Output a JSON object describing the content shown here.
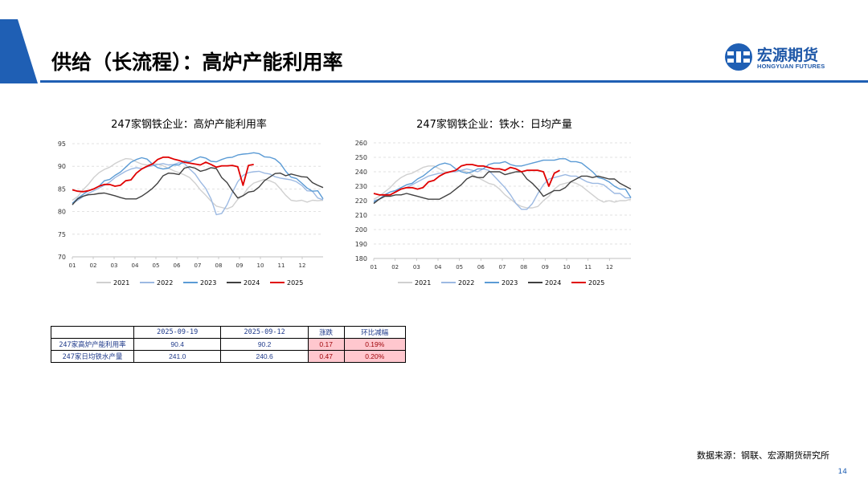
{
  "slide": {
    "title": "供给（长流程）：高炉产能利用率",
    "logo_cn": "宏源期货",
    "logo_en": "HONGYUAN FUTURES",
    "source": "数据来源：钢联、宏源期货研究所",
    "page_number": "14"
  },
  "colors": {
    "brand_blue": "#1f5fb4",
    "series_2021": "#d0d0d0",
    "series_2022": "#9cb9e2",
    "series_2023": "#5b9bd5",
    "series_2024": "#404040",
    "series_2025": "#e00000"
  },
  "chart_data": [
    {
      "type": "line",
      "title": "247家钢铁企业：高炉产能利用率",
      "x_ticks": [
        "01",
        "02",
        "03",
        "04",
        "05",
        "06",
        "07",
        "08",
        "09",
        "10",
        "11",
        "12"
      ],
      "ylim": [
        70,
        95
      ],
      "y_ticks": [
        70,
        75,
        80,
        85,
        90,
        95
      ],
      "legend": "bottom",
      "grid": "horizontal dashed",
      "series": [
        {
          "name": "2021",
          "values": [
            82.5,
            83.3,
            84.8,
            86.0,
            87.5,
            88.6,
            89.3,
            89.8,
            90.6,
            91.2,
            91.7,
            91.6,
            91.0,
            90.5,
            90.3,
            90.6,
            90.5,
            90.1,
            89.6,
            89.0,
            88.6,
            88.1,
            87.5,
            86.3,
            84.8,
            83.6,
            82.3,
            81.2,
            80.9,
            80.6,
            81.1,
            82.7,
            83.6,
            85.3,
            86.3,
            86.7,
            87.1,
            86.8,
            86.3,
            85.0,
            83.6,
            82.5,
            82.3,
            82.5,
            82.1,
            82.5,
            82.4,
            82.5
          ]
        },
        {
          "name": "2022",
          "values": [
            81.8,
            82.5,
            83.3,
            84.0,
            84.6,
            85.2,
            85.8,
            86.5,
            87.5,
            88.2,
            88.9,
            89.4,
            89.7,
            89.5,
            89.9,
            90.1,
            90.4,
            90.6,
            90.3,
            90.4,
            90.8,
            90.6,
            89.4,
            88.3,
            86.6,
            85.1,
            82.8,
            79.3,
            79.6,
            81.5,
            84.2,
            86.6,
            88.0,
            88.6,
            88.8,
            88.9,
            88.5,
            88.3,
            87.7,
            87.4,
            87.2,
            87.0,
            86.6,
            85.8,
            84.6,
            84.5,
            83.0,
            82.6
          ]
        },
        {
          "name": "2023",
          "values": [
            81.8,
            82.9,
            83.8,
            84.6,
            85.0,
            85.6,
            86.8,
            87.1,
            88.0,
            88.7,
            89.8,
            90.9,
            91.5,
            91.9,
            91.6,
            90.5,
            89.7,
            89.4,
            89.6,
            90.3,
            90.3,
            91.2,
            91.0,
            91.6,
            92.1,
            91.8,
            91.1,
            91.0,
            91.5,
            91.9,
            92.0,
            92.5,
            92.7,
            92.8,
            93.0,
            92.8,
            92.1,
            92.0,
            91.6,
            90.6,
            88.9,
            87.6,
            87.3,
            86.3,
            85.2,
            84.5,
            84.6,
            82.8
          ]
        },
        {
          "name": "2024",
          "values": [
            81.5,
            82.8,
            83.4,
            83.7,
            83.8,
            84.0,
            84.1,
            83.8,
            83.5,
            83.1,
            82.8,
            82.8,
            82.8,
            83.4,
            84.2,
            85.1,
            86.3,
            87.9,
            88.5,
            88.4,
            88.2,
            89.6,
            89.9,
            89.6,
            88.9,
            89.2,
            89.7,
            89.5,
            87.5,
            86.4,
            84.6,
            83.0,
            83.5,
            84.3,
            84.5,
            85.4,
            86.8,
            87.6,
            88.4,
            88.5,
            87.9,
            88.3,
            88.0,
            87.7,
            87.6,
            86.4,
            85.8,
            85.3
          ]
        },
        {
          "name": "2025",
          "values": [
            84.8,
            84.5,
            84.4,
            84.6,
            85.0,
            85.6,
            86.0,
            86.0,
            85.6,
            85.8,
            86.8,
            87.0,
            88.5,
            89.4,
            90.0,
            90.5,
            91.5,
            92.0,
            92.0,
            91.6,
            91.3,
            90.9,
            90.7,
            90.5,
            90.3,
            90.9,
            90.4,
            89.8,
            90.1,
            90.1,
            90.2,
            89.9,
            85.8,
            90.2,
            90.4
          ]
        }
      ]
    },
    {
      "type": "line",
      "title": "247家钢铁企业：铁水：日均产量",
      "x_ticks": [
        "01",
        "02",
        "03",
        "04",
        "05",
        "06",
        "07",
        "08",
        "09",
        "10",
        "11",
        "12"
      ],
      "ylim": [
        180,
        260
      ],
      "y_ticks": [
        180,
        190,
        200,
        210,
        220,
        230,
        240,
        250,
        260
      ],
      "legend": "bottom",
      "grid": "horizontal dashed",
      "series": [
        {
          "name": "2021",
          "values": [
            221,
            223,
            226,
            229,
            233,
            236,
            238,
            239,
            241,
            243,
            244,
            244,
            242,
            240,
            240,
            241,
            241,
            240,
            238,
            236,
            234,
            232,
            231,
            228,
            224,
            221,
            218,
            216,
            215,
            215,
            216,
            220,
            223,
            228,
            231,
            232,
            233,
            232,
            230,
            227,
            224,
            221,
            219,
            220,
            219,
            220,
            220,
            221
          ]
        },
        {
          "name": "2022",
          "values": [
            220,
            221,
            223,
            224,
            226,
            228,
            229,
            231,
            233,
            235,
            237,
            238,
            239,
            239,
            240,
            240,
            241,
            242,
            241,
            240,
            242,
            241,
            237,
            233,
            229,
            224,
            218,
            214,
            214,
            218,
            225,
            231,
            235,
            236,
            237,
            238,
            237,
            237,
            235,
            233,
            232,
            232,
            231,
            228,
            225,
            225,
            222,
            222
          ]
        },
        {
          "name": "2023",
          "values": [
            219,
            221,
            224,
            226,
            227,
            229,
            231,
            232,
            235,
            237,
            240,
            243,
            245,
            246,
            245,
            242,
            240,
            239,
            240,
            242,
            242,
            245,
            246,
            246,
            247,
            245,
            244,
            244,
            245,
            246,
            247,
            248,
            248,
            248,
            249,
            249,
            247,
            247,
            246,
            243,
            240,
            236,
            235,
            233,
            230,
            228,
            228,
            222
          ]
        },
        {
          "name": "2024",
          "values": [
            218,
            221,
            223,
            223,
            224,
            224,
            225,
            224,
            223,
            222,
            221,
            221,
            221,
            223,
            225,
            228,
            231,
            235,
            237,
            236,
            236,
            240,
            240,
            240,
            238,
            239,
            240,
            240,
            235,
            232,
            228,
            223,
            225,
            227,
            227,
            229,
            233,
            235,
            237,
            237,
            236,
            237,
            236,
            235,
            235,
            232,
            230,
            228
          ]
        },
        {
          "name": "2025",
          "values": [
            225,
            224,
            224,
            224,
            226,
            228,
            229,
            229,
            228,
            229,
            233,
            234,
            237,
            239,
            240,
            241,
            244,
            245,
            245,
            244,
            244,
            243,
            242,
            242,
            241,
            243,
            242,
            240,
            241,
            241,
            241,
            240,
            230,
            239,
            241
          ]
        }
      ]
    }
  ],
  "table": {
    "headers": [
      "",
      "2025-09-19",
      "2025-09-12",
      "涨跌",
      "环比减幅"
    ],
    "rows": [
      [
        "247家高炉产能利用率",
        "90.4",
        "90.2",
        "0.17",
        "0.19%"
      ],
      [
        "247家日均铁水产量",
        "241.0",
        "240.6",
        "0.47",
        "0.20%"
      ]
    ]
  }
}
